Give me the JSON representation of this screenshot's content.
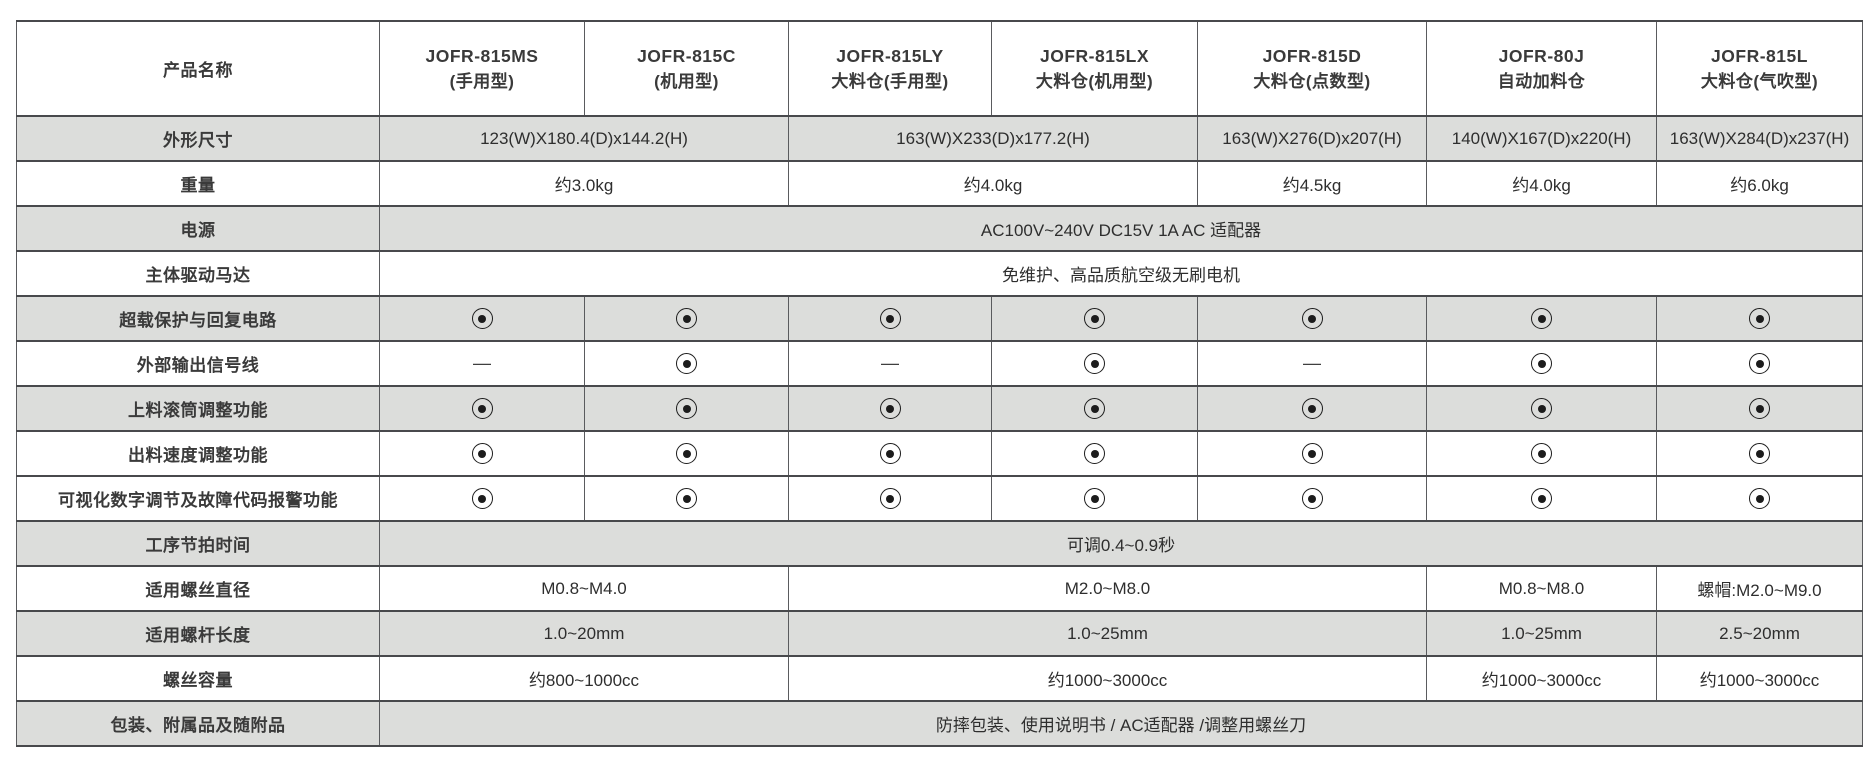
{
  "colors": {
    "row_shade": "#dcdddb",
    "border_horizontal": "#48494c",
    "border_vertical": "#5a5b5e",
    "header_text": "#3a3a3a",
    "body_text": "#2e2e2e",
    "symbol": "#1c1c1c"
  },
  "table": {
    "corner_label": "产品名称",
    "symbols": {
      "included": "bullseye",
      "not_available": "—"
    },
    "columns": [
      {
        "model": "JOFR-815MS",
        "subtitle": "(手用型)"
      },
      {
        "model": "JOFR-815C",
        "subtitle": "(机用型)"
      },
      {
        "model": "JOFR-815LY",
        "subtitle": "大料仓(手用型)"
      },
      {
        "model": "JOFR-815LX",
        "subtitle": "大料仓(机用型)"
      },
      {
        "model": "JOFR-815D",
        "subtitle": "大料仓(点数型)"
      },
      {
        "model": "JOFR-80J",
        "subtitle": "自动加料仓"
      },
      {
        "model": "JOFR-815L",
        "subtitle": "大料仓(气吹型)"
      }
    ],
    "rows": [
      {
        "label": "外形尺寸",
        "shaded": true,
        "cells": [
          {
            "span": 2,
            "text": "123(W)X180.4(D)x144.2(H)"
          },
          {
            "span": 2,
            "text": "163(W)X233(D)x177.2(H)"
          },
          {
            "span": 1,
            "text": "163(W)X276(D)x207(H)"
          },
          {
            "span": 1,
            "text": "140(W)X167(D)x220(H)"
          },
          {
            "span": 1,
            "text": "163(W)X284(D)x237(H)"
          }
        ]
      },
      {
        "label": "重量",
        "shaded": false,
        "cells": [
          {
            "span": 2,
            "text": "约3.0kg"
          },
          {
            "span": 2,
            "text": "约4.0kg"
          },
          {
            "span": 1,
            "text": "约4.5kg"
          },
          {
            "span": 1,
            "text": "约4.0kg"
          },
          {
            "span": 1,
            "text": "约6.0kg"
          }
        ]
      },
      {
        "label": "电源",
        "shaded": true,
        "cells": [
          {
            "span": 7,
            "text": "AC100V~240V DC15V 1A AC 适配器"
          }
        ]
      },
      {
        "label": "主体驱动马达",
        "shaded": false,
        "cells": [
          {
            "span": 7,
            "text": "免维护、高品质航空级无刷电机"
          }
        ]
      },
      {
        "label": "超载保护与回复电路",
        "shaded": true,
        "cells": [
          {
            "span": 1,
            "symbol": "dot"
          },
          {
            "span": 1,
            "symbol": "dot"
          },
          {
            "span": 1,
            "symbol": "dot"
          },
          {
            "span": 1,
            "symbol": "dot"
          },
          {
            "span": 1,
            "symbol": "dot"
          },
          {
            "span": 1,
            "symbol": "dot"
          },
          {
            "span": 1,
            "symbol": "dot"
          }
        ]
      },
      {
        "label": "外部输出信号线",
        "shaded": false,
        "cells": [
          {
            "span": 1,
            "symbol": "dash"
          },
          {
            "span": 1,
            "symbol": "dot"
          },
          {
            "span": 1,
            "symbol": "dash"
          },
          {
            "span": 1,
            "symbol": "dot"
          },
          {
            "span": 1,
            "symbol": "dash"
          },
          {
            "span": 1,
            "symbol": "dot"
          },
          {
            "span": 1,
            "symbol": "dot"
          }
        ]
      },
      {
        "label": "上料滚筒调整功能",
        "shaded": true,
        "cells": [
          {
            "span": 1,
            "symbol": "dot"
          },
          {
            "span": 1,
            "symbol": "dot"
          },
          {
            "span": 1,
            "symbol": "dot"
          },
          {
            "span": 1,
            "symbol": "dot"
          },
          {
            "span": 1,
            "symbol": "dot"
          },
          {
            "span": 1,
            "symbol": "dot"
          },
          {
            "span": 1,
            "symbol": "dot"
          }
        ]
      },
      {
        "label": "出料速度调整功能",
        "shaded": false,
        "cells": [
          {
            "span": 1,
            "symbol": "dot"
          },
          {
            "span": 1,
            "symbol": "dot"
          },
          {
            "span": 1,
            "symbol": "dot"
          },
          {
            "span": 1,
            "symbol": "dot"
          },
          {
            "span": 1,
            "symbol": "dot"
          },
          {
            "span": 1,
            "symbol": "dot"
          },
          {
            "span": 1,
            "symbol": "dot"
          }
        ]
      },
      {
        "label": "可视化数字调节及故障代码报警功能",
        "shaded": false,
        "cells": [
          {
            "span": 1,
            "symbol": "dot"
          },
          {
            "span": 1,
            "symbol": "dot"
          },
          {
            "span": 1,
            "symbol": "dot"
          },
          {
            "span": 1,
            "symbol": "dot"
          },
          {
            "span": 1,
            "symbol": "dot"
          },
          {
            "span": 1,
            "symbol": "dot"
          },
          {
            "span": 1,
            "symbol": "dot"
          }
        ]
      },
      {
        "label": "工序节拍时间",
        "shaded": true,
        "cells": [
          {
            "span": 7,
            "text": "可调0.4~0.9秒"
          }
        ]
      },
      {
        "label": "适用螺丝直径",
        "shaded": false,
        "cells": [
          {
            "span": 2,
            "text": "M0.8~M4.0"
          },
          {
            "span": 3,
            "text": "M2.0~M8.0"
          },
          {
            "span": 1,
            "text": "M0.8~M8.0"
          },
          {
            "span": 1,
            "text": "螺帽:M2.0~M9.0"
          }
        ]
      },
      {
        "label": "适用螺杆长度",
        "shaded": true,
        "cells": [
          {
            "span": 2,
            "text": "1.0~20mm"
          },
          {
            "span": 3,
            "text": "1.0~25mm"
          },
          {
            "span": 1,
            "text": "1.0~25mm"
          },
          {
            "span": 1,
            "text": "2.5~20mm"
          }
        ]
      },
      {
        "label": "螺丝容量",
        "shaded": false,
        "cells": [
          {
            "span": 2,
            "text": "约800~1000cc"
          },
          {
            "span": 3,
            "text": "约1000~3000cc"
          },
          {
            "span": 1,
            "text": "约1000~3000cc"
          },
          {
            "span": 1,
            "text": "约1000~3000cc"
          }
        ]
      },
      {
        "label": "包装、附属品及随附品",
        "shaded": true,
        "cells": [
          {
            "span": 7,
            "text": "防摔包装、使用说明书 / AC适配器 /调整用螺丝刀"
          }
        ]
      }
    ]
  }
}
